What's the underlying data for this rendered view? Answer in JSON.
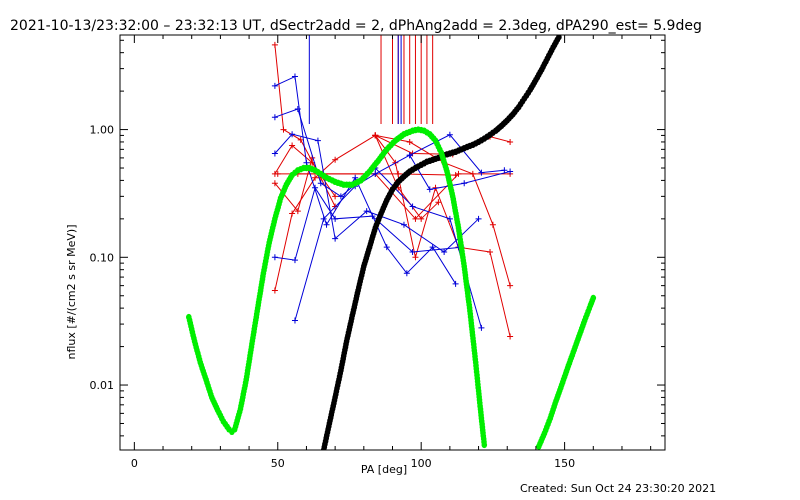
{
  "chart_data": {
    "type": "scatter",
    "title": "2021-10-13/23:32:00 – 23:32:13 UT, dSectr2add = 2, dPhAng2add = 2.3deg, dPA290_est=  5.9deg",
    "xlabel": "PA [deg]",
    "ylabel": "nflux [#/(cm2 s sr MeV)]",
    "xlim": [
      -5,
      185
    ],
    "ylim": [
      0.0031,
      5.5
    ],
    "yscale": "log",
    "x_ticks": [
      0,
      50,
      100,
      150
    ],
    "x_tick_labels": [
      "0",
      "50",
      "100",
      "150"
    ],
    "y_ticks": [
      0.01,
      0.1,
      1.0
    ],
    "y_tick_labels": [
      "0.01",
      "0.10",
      "1.00"
    ],
    "footer": "Created: Sun Oct 24 23:30:20 2021",
    "colors": {
      "red": "#e00000",
      "blue": "#0000d8",
      "green": "#00ee00",
      "black": "#000000",
      "axes": "#000000"
    },
    "red_series": [
      [
        [
          49,
          4.6
        ],
        [
          52,
          1.0
        ],
        [
          58,
          0.83
        ],
        [
          65,
          0.42
        ],
        [
          70,
          0.25
        ]
      ],
      [
        [
          49,
          0.45
        ],
        [
          55,
          0.75
        ],
        [
          62,
          0.55
        ],
        [
          70,
          0.3
        ]
      ],
      [
        [
          49,
          0.055
        ],
        [
          55,
          0.22
        ],
        [
          63,
          0.42
        ],
        [
          70,
          0.58
        ],
        [
          84,
          0.9
        ],
        [
          96,
          0.8
        ],
        [
          108,
          0.55
        ],
        [
          118,
          0.45
        ],
        [
          125,
          0.18
        ],
        [
          131,
          0.06
        ]
      ],
      [
        [
          49,
          0.38
        ],
        [
          57,
          0.23
        ],
        [
          62,
          0.6
        ]
      ],
      [
        [
          50,
          0.45
        ],
        [
          84,
          0.45
        ],
        [
          98,
          0.2
        ],
        [
          113,
          0.45
        ],
        [
          131,
          0.45
        ]
      ],
      [
        [
          84,
          0.9
        ],
        [
          97,
          0.65
        ],
        [
          111,
          0.64
        ],
        [
          124,
          0.88
        ],
        [
          131,
          0.8
        ]
      ],
      [
        [
          84,
          0.9
        ],
        [
          91,
          0.55
        ],
        [
          98,
          0.1
        ],
        [
          105,
          0.35
        ],
        [
          113,
          0.12
        ],
        [
          124,
          0.11
        ],
        [
          131,
          0.024
        ]
      ],
      [
        [
          84,
          0.9
        ],
        [
          92,
          0.35
        ],
        [
          100,
          0.2
        ],
        [
          106,
          0.27
        ]
      ],
      [
        [
          57,
          0.45
        ],
        [
          92,
          0.45
        ],
        [
          112,
          0.44
        ]
      ]
    ],
    "blue_series": [
      [
        [
          49,
          2.2
        ],
        [
          56,
          2.6
        ],
        [
          60,
          0.55
        ],
        [
          67,
          0.18
        ],
        [
          77,
          0.42
        ],
        [
          88,
          0.12
        ],
        [
          95,
          0.075
        ],
        [
          104,
          0.12
        ],
        [
          112,
          0.062
        ]
      ],
      [
        [
          49,
          1.25
        ],
        [
          57,
          1.45
        ],
        [
          65,
          0.38
        ],
        [
          72,
          0.3
        ],
        [
          84,
          0.5
        ],
        [
          97,
          0.25
        ],
        [
          110,
          0.2
        ],
        [
          121,
          0.028
        ]
      ],
      [
        [
          49,
          0.65
        ],
        [
          55,
          0.92
        ],
        [
          64,
          0.82
        ],
        [
          70,
          0.14
        ],
        [
          81,
          0.23
        ],
        [
          94,
          0.18
        ],
        [
          108,
          0.11
        ],
        [
          120,
          0.2
        ]
      ],
      [
        [
          49,
          0.1
        ],
        [
          56,
          0.095
        ],
        [
          63,
          0.35
        ],
        [
          70,
          0.2
        ],
        [
          83,
          0.21
        ],
        [
          97,
          0.11
        ],
        [
          114,
          0.12
        ]
      ],
      [
        [
          56,
          0.032
        ],
        [
          66,
          0.2
        ],
        [
          77,
          0.36
        ],
        [
          84,
          0.45
        ],
        [
          96,
          0.63
        ],
        [
          110,
          0.91
        ],
        [
          121,
          0.46
        ],
        [
          129,
          0.48
        ]
      ],
      [
        [
          96,
          0.63
        ],
        [
          103,
          0.34
        ],
        [
          115,
          0.38
        ],
        [
          131,
          0.47
        ]
      ]
    ],
    "red_vlines": [
      86,
      90,
      92,
      94,
      96,
      98,
      100,
      102,
      104
    ],
    "blue_vlines": [
      61,
      92,
      93
    ],
    "green_curve": [
      [
        19,
        0.034
      ],
      [
        21,
        0.022
      ],
      [
        23,
        0.015
      ],
      [
        25,
        0.011
      ],
      [
        27,
        0.008
      ],
      [
        29,
        0.0064
      ],
      [
        31,
        0.0052
      ],
      [
        33,
        0.0045
      ],
      [
        34,
        0.0043
      ],
      [
        35,
        0.0045
      ],
      [
        37,
        0.0065
      ],
      [
        39,
        0.011
      ],
      [
        41,
        0.021
      ],
      [
        43,
        0.04
      ],
      [
        45,
        0.075
      ],
      [
        47,
        0.13
      ],
      [
        49,
        0.2
      ],
      [
        51,
        0.29
      ],
      [
        53,
        0.37
      ],
      [
        55,
        0.44
      ],
      [
        57,
        0.48
      ],
      [
        59,
        0.5
      ],
      [
        61,
        0.5
      ],
      [
        63,
        0.48
      ],
      [
        65,
        0.45
      ],
      [
        67,
        0.42
      ],
      [
        70,
        0.39
      ],
      [
        73,
        0.37
      ],
      [
        76,
        0.37
      ],
      [
        79,
        0.4
      ],
      [
        82,
        0.47
      ],
      [
        85,
        0.57
      ],
      [
        88,
        0.7
      ],
      [
        91,
        0.82
      ],
      [
        94,
        0.92
      ],
      [
        97,
        0.98
      ],
      [
        99,
        1.0
      ],
      [
        101,
        0.98
      ],
      [
        103,
        0.92
      ],
      [
        105,
        0.82
      ],
      [
        107,
        0.66
      ],
      [
        109,
        0.47
      ],
      [
        111,
        0.3
      ],
      [
        113,
        0.17
      ],
      [
        115,
        0.085
      ],
      [
        117,
        0.038
      ],
      [
        119,
        0.015
      ],
      [
        120,
        0.009
      ],
      [
        121,
        0.0055
      ],
      [
        122,
        0.0034
      ]
    ],
    "green_curve2": [
      [
        141,
        0.0033
      ],
      [
        143,
        0.0042
      ],
      [
        145,
        0.0055
      ],
      [
        147,
        0.0075
      ],
      [
        149,
        0.01
      ],
      [
        151,
        0.0135
      ],
      [
        153,
        0.018
      ],
      [
        155,
        0.024
      ],
      [
        157,
        0.032
      ],
      [
        159,
        0.042
      ],
      [
        160,
        0.048
      ]
    ],
    "black_curve": [
      [
        66,
        0.0031
      ],
      [
        68,
        0.005
      ],
      [
        70,
        0.008
      ],
      [
        72,
        0.013
      ],
      [
        74,
        0.022
      ],
      [
        76,
        0.035
      ],
      [
        78,
        0.055
      ],
      [
        80,
        0.085
      ],
      [
        82,
        0.12
      ],
      [
        84,
        0.17
      ],
      [
        86,
        0.22
      ],
      [
        88,
        0.28
      ],
      [
        90,
        0.34
      ],
      [
        92,
        0.39
      ],
      [
        94,
        0.43
      ],
      [
        96,
        0.47
      ],
      [
        98,
        0.5
      ],
      [
        100,
        0.53
      ],
      [
        102,
        0.56
      ],
      [
        104,
        0.58
      ],
      [
        106,
        0.6
      ],
      [
        108,
        0.63
      ],
      [
        110,
        0.65
      ],
      [
        112,
        0.67
      ],
      [
        114,
        0.7
      ],
      [
        116,
        0.73
      ],
      [
        118,
        0.76
      ],
      [
        120,
        0.8
      ],
      [
        122,
        0.85
      ],
      [
        124,
        0.91
      ],
      [
        126,
        0.98
      ],
      [
        128,
        1.07
      ],
      [
        130,
        1.18
      ],
      [
        132,
        1.32
      ],
      [
        134,
        1.5
      ],
      [
        136,
        1.75
      ],
      [
        138,
        2.05
      ],
      [
        140,
        2.45
      ],
      [
        142,
        2.95
      ],
      [
        144,
        3.6
      ],
      [
        146,
        4.4
      ],
      [
        148,
        5.3
      ]
    ]
  }
}
